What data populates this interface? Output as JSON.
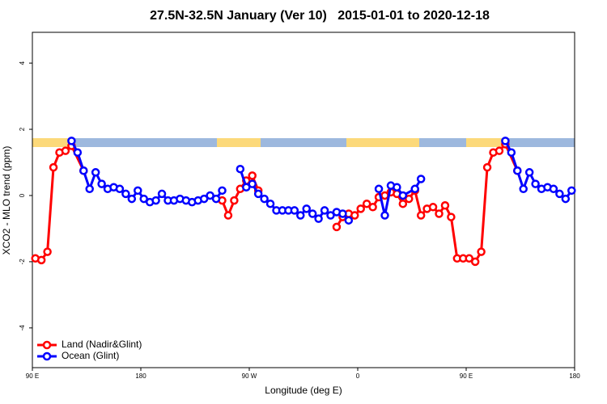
{
  "chart_data": {
    "type": "line",
    "title": "27.5N-32.5N January (Ver 10)   2015-01-01 to 2020-12-18",
    "xlabel": "Longitude (deg E)",
    "ylabel": "XCO2 - MLO trend (ppm)",
    "xlim": [
      90,
      540
    ],
    "ylim": [
      -5.2,
      4.93
    ],
    "xticks": [
      {
        "value": 90,
        "label": "90 E"
      },
      180,
      {
        "value": 270,
        "label": "90 W"
      },
      {
        "value": 360,
        "label": "0"
      },
      {
        "value": 450,
        "label": "90 E"
      },
      {
        "value": 540,
        "label": "180"
      }
    ],
    "yticks": [
      -4,
      -2,
      0,
      2,
      4
    ],
    "legend": "bottom-left",
    "series": [
      {
        "name": "Land (Nadir&Glint)",
        "color": "#ff0000",
        "x": [
          92.5,
          97.5,
          102.5,
          107.5,
          112.5,
          117.5,
          122.5,
          132.5,
          null,
          247.5,
          252.5,
          257.5,
          262.5,
          267.5,
          272.5,
          277.5,
          null,
          342.5,
          347.5,
          352.5,
          357.5,
          362.5,
          367.5,
          372.5,
          377.5,
          382.5,
          387.5,
          392.5,
          397.5,
          402.5,
          407.5,
          412.5,
          417.5,
          422.5,
          427.5,
          432.5,
          437.5,
          442.5,
          447.5,
          452.5,
          457.5,
          462.5,
          467.5,
          472.5,
          477.5,
          482.5,
          492.5
        ],
        "values": [
          -1.9,
          -1.95,
          -1.7,
          0.85,
          1.3,
          1.35,
          1.5,
          0.75,
          null,
          -0.15,
          -0.6,
          -0.15,
          0.2,
          0.45,
          0.6,
          0.15,
          null,
          -0.95,
          -0.65,
          -0.55,
          -0.6,
          -0.4,
          -0.25,
          -0.35,
          -0.05,
          0,
          0.1,
          0.05,
          -0.25,
          -0.1,
          0.15,
          -0.6,
          -0.4,
          -0.35,
          -0.55,
          -0.3,
          -0.65,
          -1.9,
          -1.9,
          -1.9,
          -2.0,
          -1.7,
          0.85,
          1.3,
          1.35,
          1.55,
          0.75
        ]
      },
      {
        "name": "Ocean (Glint)",
        "color": "#0000ff",
        "x": [
          122.5,
          127.5,
          132.5,
          137.5,
          142.5,
          147.5,
          152.5,
          157.5,
          162.5,
          167.5,
          172.5,
          177.5,
          182.5,
          187.5,
          192.5,
          197.5,
          202.5,
          207.5,
          212.5,
          217.5,
          222.5,
          227.5,
          232.5,
          237.5,
          242.5,
          247.5,
          null,
          262.5,
          267.5,
          272.5,
          277.5,
          282.5,
          287.5,
          292.5,
          297.5,
          302.5,
          307.5,
          312.5,
          317.5,
          322.5,
          327.5,
          332.5,
          337.5,
          342.5,
          347.5,
          352.5,
          null,
          377.5,
          382.5,
          387.5,
          392.5,
          397.5,
          407.5,
          412.5,
          null,
          482.5,
          487.5,
          492.5,
          497.5,
          502.5,
          507.5,
          512.5,
          517.5,
          522.5,
          527.5,
          532.5,
          537.5
        ],
        "values": [
          1.65,
          1.3,
          0.75,
          0.2,
          0.7,
          0.35,
          0.2,
          0.25,
          0.2,
          0.05,
          -0.1,
          0.15,
          -0.1,
          -0.2,
          -0.15,
          0.05,
          -0.15,
          -0.15,
          -0.1,
          -0.15,
          -0.2,
          -0.15,
          -0.1,
          0,
          -0.1,
          0.15,
          null,
          0.8,
          0.25,
          0.35,
          0.05,
          -0.1,
          -0.25,
          -0.45,
          -0.45,
          -0.45,
          -0.45,
          -0.6,
          -0.4,
          -0.55,
          -0.7,
          -0.45,
          -0.6,
          -0.5,
          -0.55,
          -0.75,
          null,
          0.2,
          -0.6,
          0.3,
          0.25,
          0,
          0.2,
          0.5,
          null,
          1.65,
          1.3,
          0.75,
          0.2,
          0.7,
          0.35,
          0.2,
          0.25,
          0.2,
          0.05,
          -0.1,
          0.15
        ]
      }
    ]
  }
}
